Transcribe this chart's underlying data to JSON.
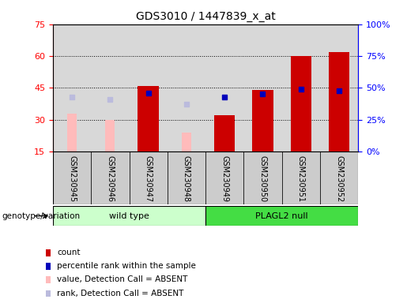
{
  "title": "GDS3010 / 1447839_x_at",
  "samples": [
    "GSM230945",
    "GSM230946",
    "GSM230947",
    "GSM230948",
    "GSM230949",
    "GSM230950",
    "GSM230951",
    "GSM230952"
  ],
  "count_values": [
    null,
    null,
    46,
    null,
    32,
    44,
    60,
    62
  ],
  "rank_values": [
    null,
    null,
    46,
    null,
    43,
    45,
    49,
    48
  ],
  "absent_value": [
    33,
    30,
    null,
    24,
    null,
    null,
    null,
    null
  ],
  "absent_rank": [
    43,
    41,
    null,
    37,
    null,
    null,
    null,
    null
  ],
  "ylim_left": [
    15,
    75
  ],
  "ylim_right": [
    0,
    100
  ],
  "yticks_left": [
    15,
    30,
    45,
    60,
    75
  ],
  "yticks_right": [
    0,
    25,
    50,
    75,
    100
  ],
  "color_count": "#cc0000",
  "color_rank": "#0000bb",
  "color_absent_value": "#ffbbbb",
  "color_absent_rank": "#bbbbdd",
  "group1_label": "wild type",
  "group2_label": "PLAGL2 null",
  "group1_color": "#ccffcc",
  "group2_color": "#44dd44",
  "background_plot": "#d8d8d8",
  "sample_box_color": "#cccccc",
  "genotype_label": "genotype/variation",
  "legend_items": [
    {
      "color": "#cc0000",
      "label": "count"
    },
    {
      "color": "#0000bb",
      "label": "percentile rank within the sample"
    },
    {
      "color": "#ffbbbb",
      "label": "value, Detection Call = ABSENT"
    },
    {
      "color": "#bbbbdd",
      "label": "rank, Detection Call = ABSENT"
    }
  ]
}
